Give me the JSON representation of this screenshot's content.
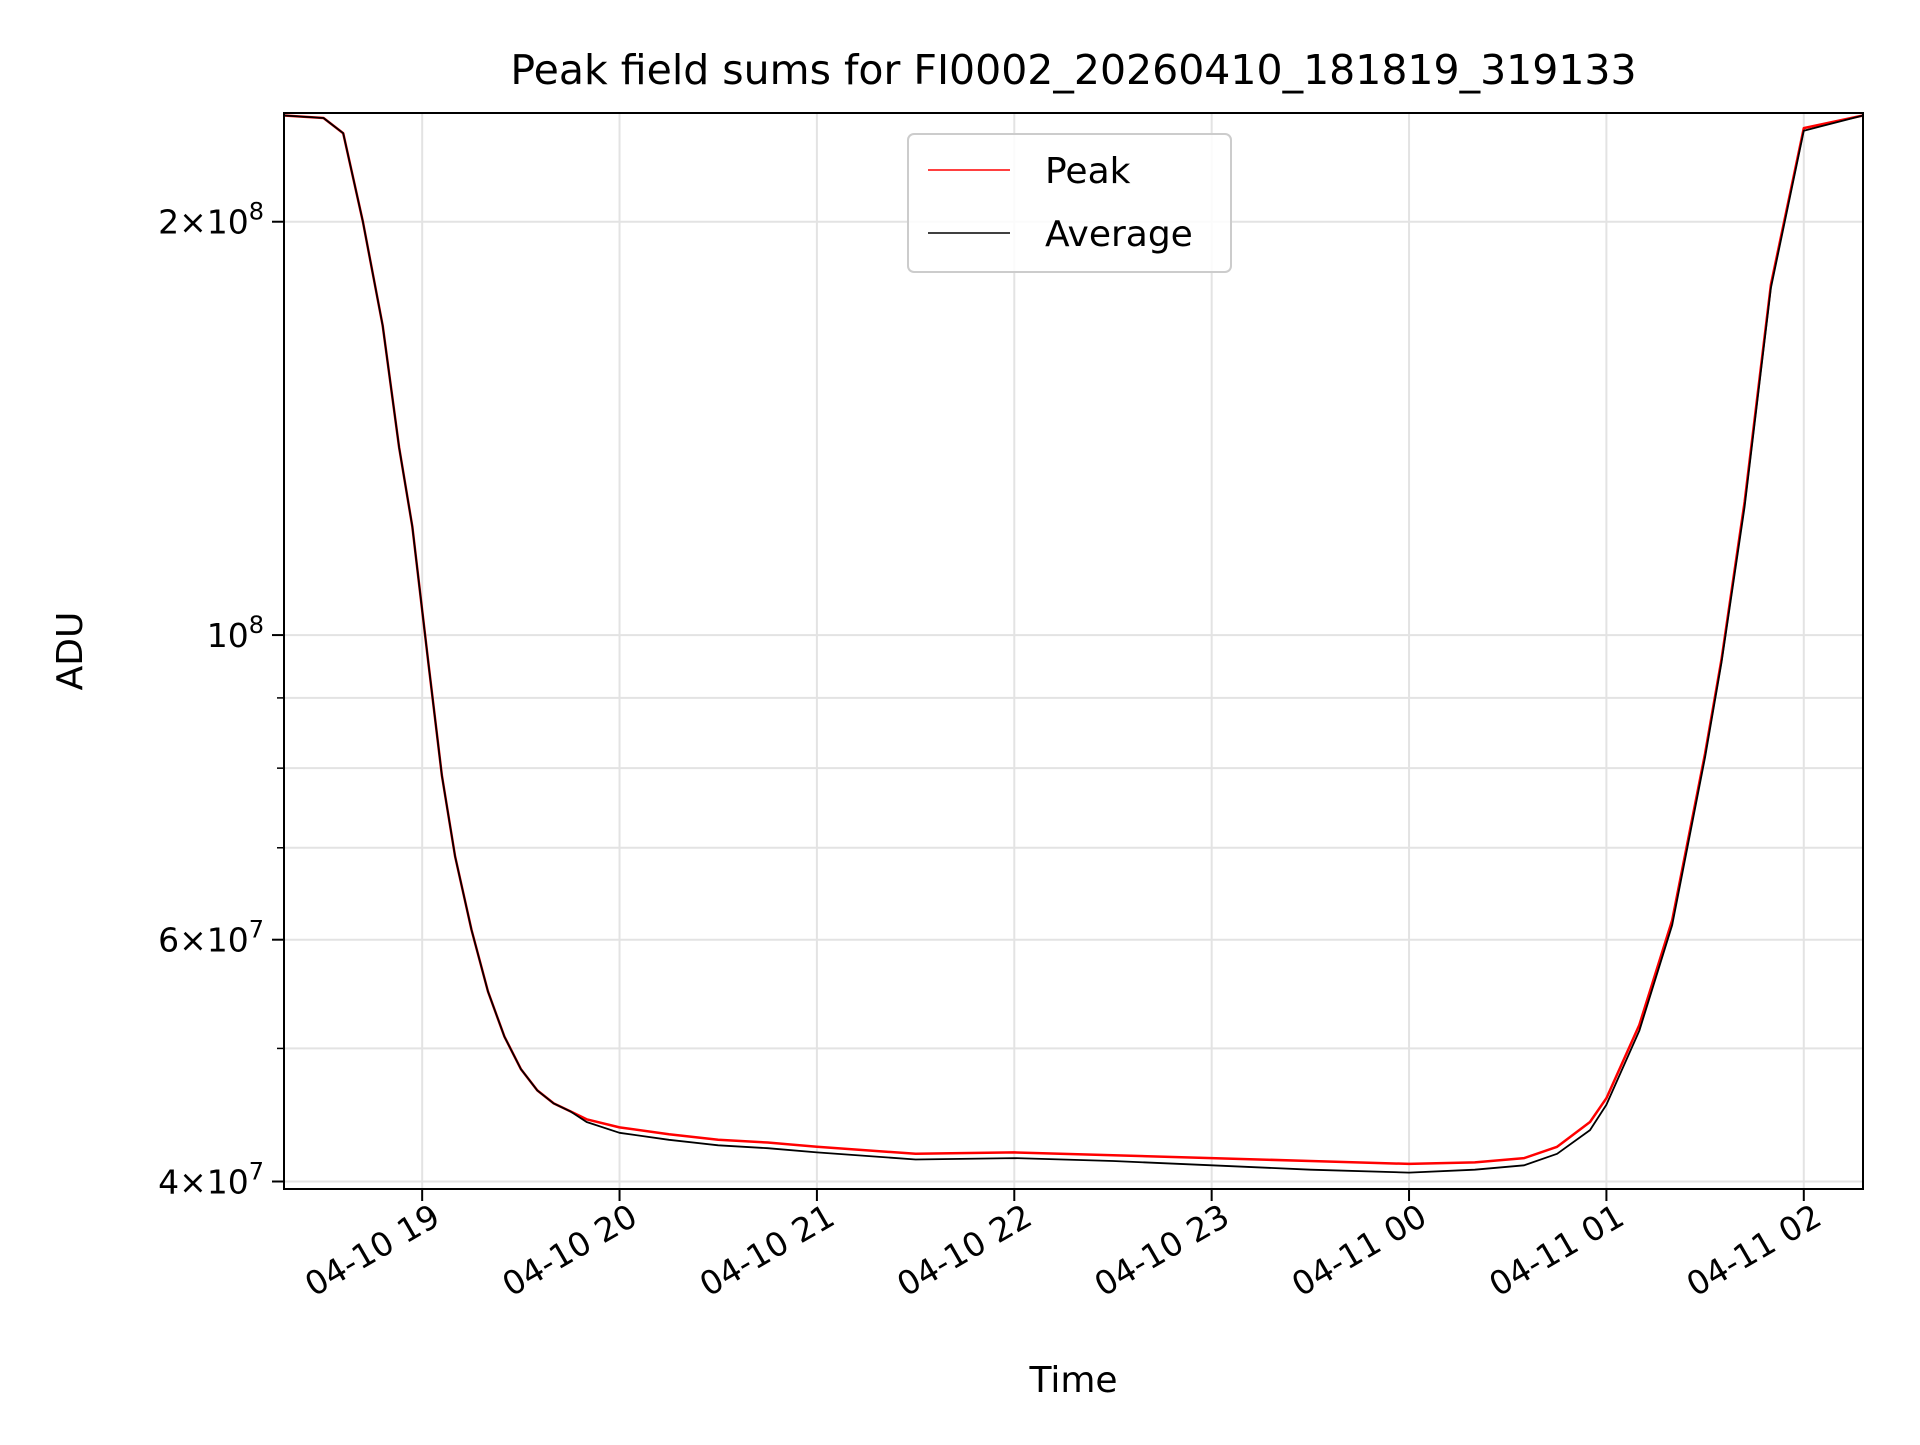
{
  "chart_data": {
    "type": "line",
    "title": "Peak field sums for FI0002_20260410_181819_319133",
    "xlabel": "Time",
    "ylabel": "ADU",
    "yscale": "log",
    "xlim": [
      "04-10 18:18",
      "04-11 02:18"
    ],
    "ylim": [
      39500000,
      240000000
    ],
    "x_ticks": [
      "04-10 19",
      "04-10 20",
      "04-10 21",
      "04-10 22",
      "04-10 23",
      "04-11 00",
      "04-11 01",
      "04-11 02"
    ],
    "y_ticks": [
      {
        "value": 40000000,
        "base": "4",
        "exp": "7"
      },
      {
        "value": 60000000,
        "base": "6",
        "exp": "7"
      },
      {
        "value": 100000000,
        "base": "",
        "exp": "8"
      },
      {
        "value": 200000000,
        "base": "2",
        "exp": "8"
      }
    ],
    "grid": true,
    "legend": {
      "placement": "upper center"
    },
    "series": [
      {
        "name": "Peak",
        "color": "#ff0000",
        "x": [
          "04-10 18:18",
          "04-10 18:30",
          "04-10 18:36",
          "04-10 18:42",
          "04-10 18:48",
          "04-10 18:53",
          "04-10 18:57",
          "04-10 19:02",
          "04-10 19:06",
          "04-10 19:10",
          "04-10 19:15",
          "04-10 19:20",
          "04-10 19:25",
          "04-10 19:30",
          "04-10 19:35",
          "04-10 19:40",
          "04-10 19:45",
          "04-10 19:50",
          "04-10 20:00",
          "04-10 20:15",
          "04-10 20:30",
          "04-10 20:45",
          "04-10 21:00",
          "04-10 21:30",
          "04-10 22:00",
          "04-10 22:30",
          "04-10 23:00",
          "04-10 23:30",
          "04-11 00:00",
          "04-11 00:20",
          "04-11 00:35",
          "04-11 00:45",
          "04-11 00:55",
          "04-11 01:00",
          "04-11 01:10",
          "04-11 01:20",
          "04-11 01:30",
          "04-11 01:35",
          "04-11 01:42",
          "04-11 01:50",
          "04-11 02:00",
          "04-11 02:18"
        ],
        "y": [
          239000000,
          238000000,
          232000000,
          200000000,
          168000000,
          137000000,
          120000000,
          95000000,
          79000000,
          69000000,
          61000000,
          55000000,
          51000000,
          48300000,
          46600000,
          45600000,
          45000000,
          44400000,
          43800000,
          43300000,
          42900000,
          42700000,
          42400000,
          41900000,
          42000000,
          41800000,
          41600000,
          41400000,
          41200000,
          41300000,
          41600000,
          42400000,
          44200000,
          46000000,
          52000000,
          62000000,
          82000000,
          96000000,
          125000000,
          180000000,
          234000000,
          239000000
        ]
      },
      {
        "name": "Average",
        "color": "#000000",
        "x": [
          "04-10 18:18",
          "04-10 18:30",
          "04-10 18:36",
          "04-10 18:42",
          "04-10 18:48",
          "04-10 18:53",
          "04-10 18:57",
          "04-10 19:02",
          "04-10 19:06",
          "04-10 19:10",
          "04-10 19:15",
          "04-10 19:20",
          "04-10 19:25",
          "04-10 19:30",
          "04-10 19:35",
          "04-10 19:40",
          "04-10 19:45",
          "04-10 19:50",
          "04-10 20:00",
          "04-10 20:15",
          "04-10 20:30",
          "04-10 20:45",
          "04-10 21:00",
          "04-10 21:30",
          "04-10 22:00",
          "04-10 22:30",
          "04-10 23:00",
          "04-10 23:30",
          "04-11 00:00",
          "04-11 00:20",
          "04-11 00:35",
          "04-11 00:45",
          "04-11 00:55",
          "04-11 01:00",
          "04-11 01:10",
          "04-11 01:20",
          "04-11 01:30",
          "04-11 01:35",
          "04-11 01:42",
          "04-11 01:50",
          "04-11 02:00",
          "04-11 02:18"
        ],
        "y": [
          239000000,
          238000000,
          232000000,
          200000000,
          168000000,
          137000000,
          120000000,
          95000000,
          79000000,
          69000000,
          61000000,
          55000000,
          51000000,
          48300000,
          46600000,
          45600000,
          45000000,
          44200000,
          43400000,
          42900000,
          42500000,
          42300000,
          42000000,
          41500000,
          41600000,
          41400000,
          41100000,
          40800000,
          40600000,
          40800000,
          41100000,
          41900000,
          43600000,
          45500000,
          51500000,
          61500000,
          81500000,
          95500000,
          124000000,
          179000000,
          233000000,
          239000000
        ]
      }
    ]
  }
}
